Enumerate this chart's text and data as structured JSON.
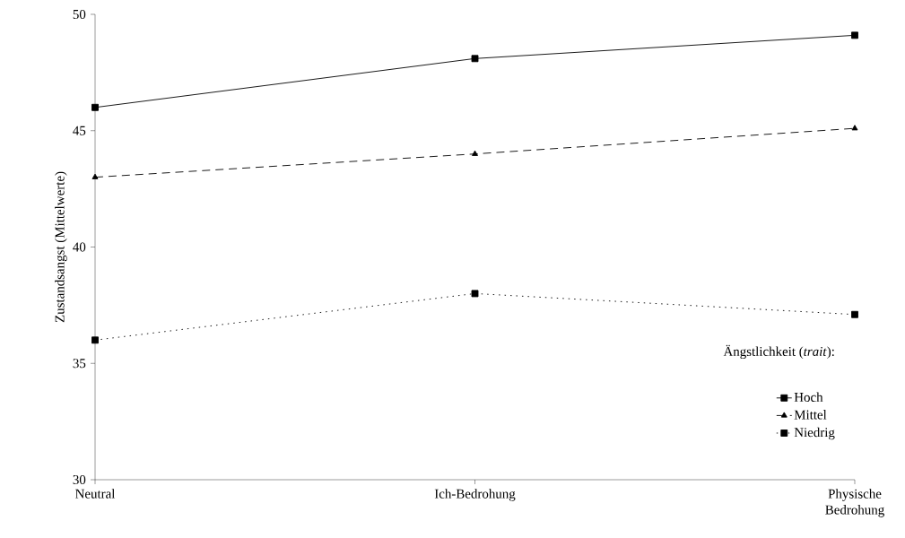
{
  "chart_data": {
    "type": "line",
    "ylabel": "Zustandsangst (Mittelwerte)",
    "legend_title": "Ängstlichkeit (*trait*):",
    "categories": [
      "Neutral",
      "Ich-Bedrohung",
      "Physische Bedrohung"
    ],
    "series": [
      {
        "name": "Hoch",
        "color": "#000000",
        "values": [
          46,
          48.1,
          49.1
        ],
        "marker": "square",
        "line_style": "solid"
      },
      {
        "name": "Mittel",
        "color": "#000000",
        "values": [
          43,
          44,
          45.1
        ],
        "marker": "triangle",
        "line_style": "dashed"
      },
      {
        "name": "Niedrig",
        "color": "#000000",
        "values": [
          36,
          38,
          37.1
        ],
        "marker": "square",
        "line_style": "dotted"
      }
    ],
    "ylim": [
      30,
      50
    ],
    "yticks": [
      30,
      35,
      40,
      45,
      50
    ],
    "grid": false,
    "legend": "bottom right"
  }
}
